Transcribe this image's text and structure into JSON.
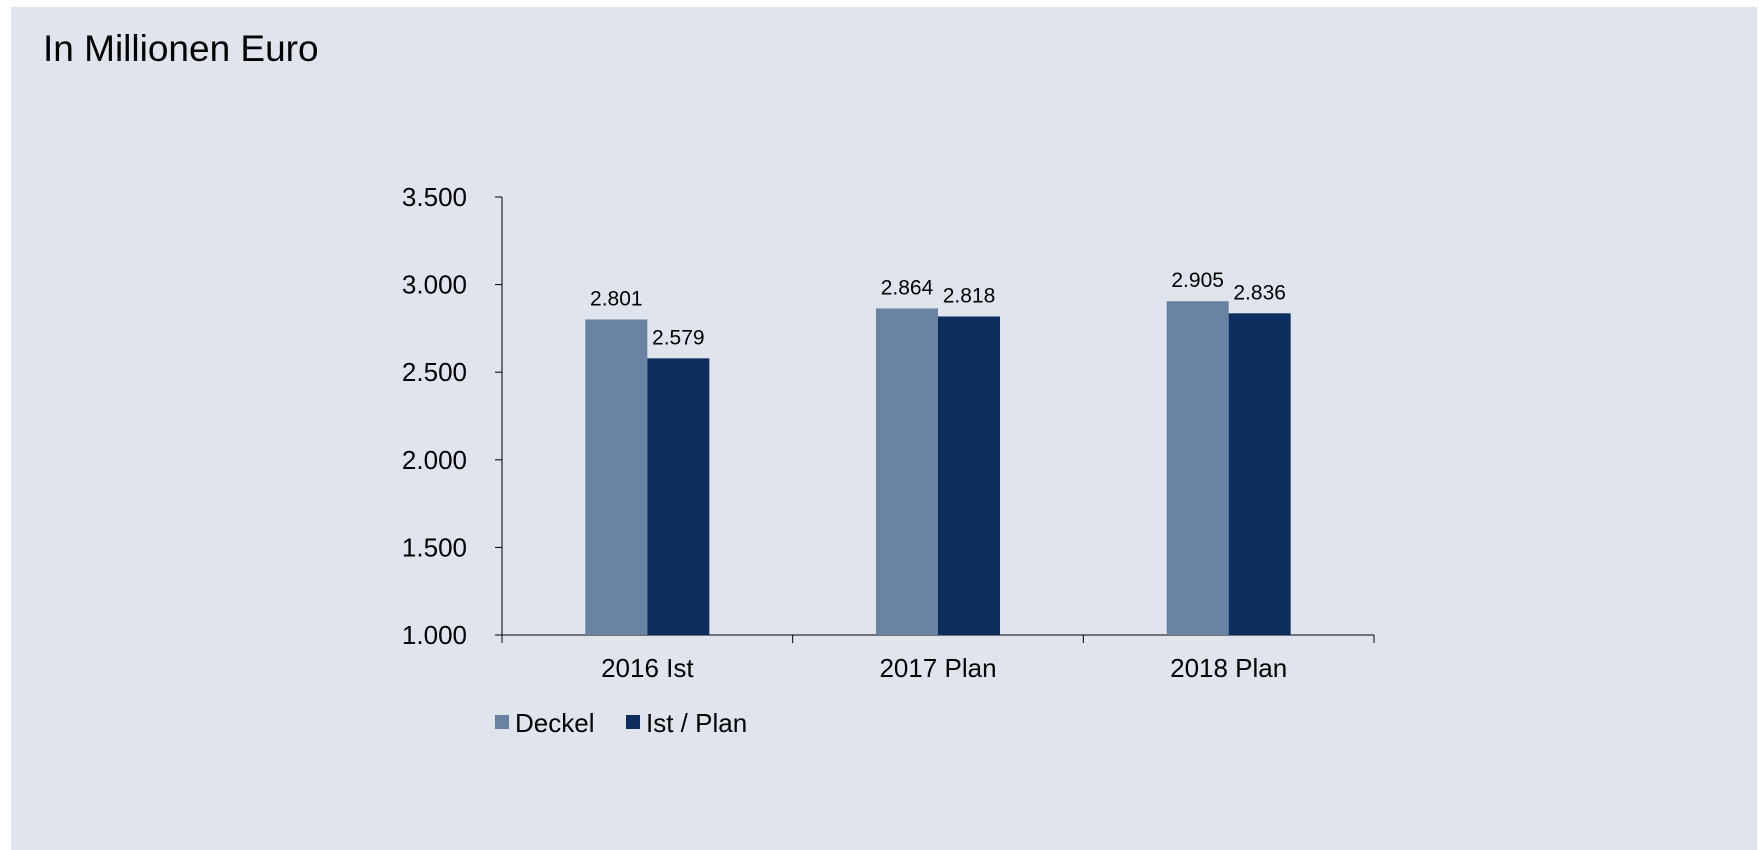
{
  "title": "In Millionen Euro",
  "chart_data": {
    "type": "bar",
    "categories": [
      "2016 Ist",
      "2017 Plan",
      "2018 Plan"
    ],
    "series": [
      {
        "name": "Deckel",
        "values": [
          2801,
          2864,
          2905
        ],
        "labels": [
          "2.801",
          "2.864",
          "2.905"
        ],
        "color": "#6a83a2"
      },
      {
        "name": "Ist / Plan",
        "values": [
          2579,
          2818,
          2836
        ],
        "labels": [
          "2.579",
          "2.818",
          "2.836"
        ],
        "color": "#0c2d5e"
      }
    ],
    "ylim": [
      1000,
      3500
    ],
    "yticks": [
      1000,
      1500,
      2000,
      2500,
      3000,
      3500
    ],
    "ytick_labels": [
      "1.000",
      "1.500",
      "2.000",
      "2.500",
      "3.000",
      "3.500"
    ],
    "xlabel": "",
    "ylabel": "",
    "grid": false,
    "legend": "bottom-left"
  }
}
